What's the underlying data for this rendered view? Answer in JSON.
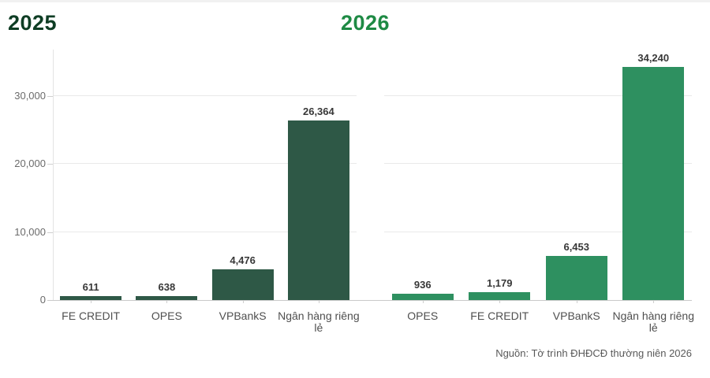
{
  "source_note": "Nguồn: Tờ trình ĐHĐCĐ thường niên 2026",
  "colors": {
    "bar_2025": "#2E5846",
    "bar_2026": "#2E9060",
    "title_2025": "#0E3D24",
    "title_2026": "#1E8A44",
    "gridline": "#E9E9E9",
    "axis_line": "#C9C9C9"
  },
  "y_axis": {
    "tick_labels": [
      "0",
      "10,000",
      "20,000",
      "30,000"
    ],
    "tick_values": [
      0,
      10000,
      20000,
      30000
    ],
    "max": 36800,
    "grid": true
  },
  "chart_data": [
    {
      "type": "bar",
      "title": "2025",
      "title_color": "#0E3D24",
      "bar_color": "#2E5846",
      "categories": [
        "FE CREDIT",
        "OPES",
        "VPBankS",
        "Ngân hàng riêng lẻ"
      ],
      "values": [
        611,
        638,
        4476,
        26364
      ],
      "value_labels": [
        "611",
        "638",
        "4,476",
        "26,364"
      ],
      "ylim": [
        0,
        36800
      ],
      "legend_position": "none"
    },
    {
      "type": "bar",
      "title": "2026",
      "title_color": "#1E8A44",
      "bar_color": "#2E9060",
      "categories": [
        "OPES",
        "FE CREDIT",
        "VPBankS",
        "Ngân hàng riêng lẻ"
      ],
      "values": [
        936,
        1179,
        6453,
        34240
      ],
      "value_labels": [
        "936",
        "1,179",
        "6,453",
        "34,240"
      ],
      "ylim": [
        0,
        36800
      ],
      "legend_position": "none"
    }
  ]
}
